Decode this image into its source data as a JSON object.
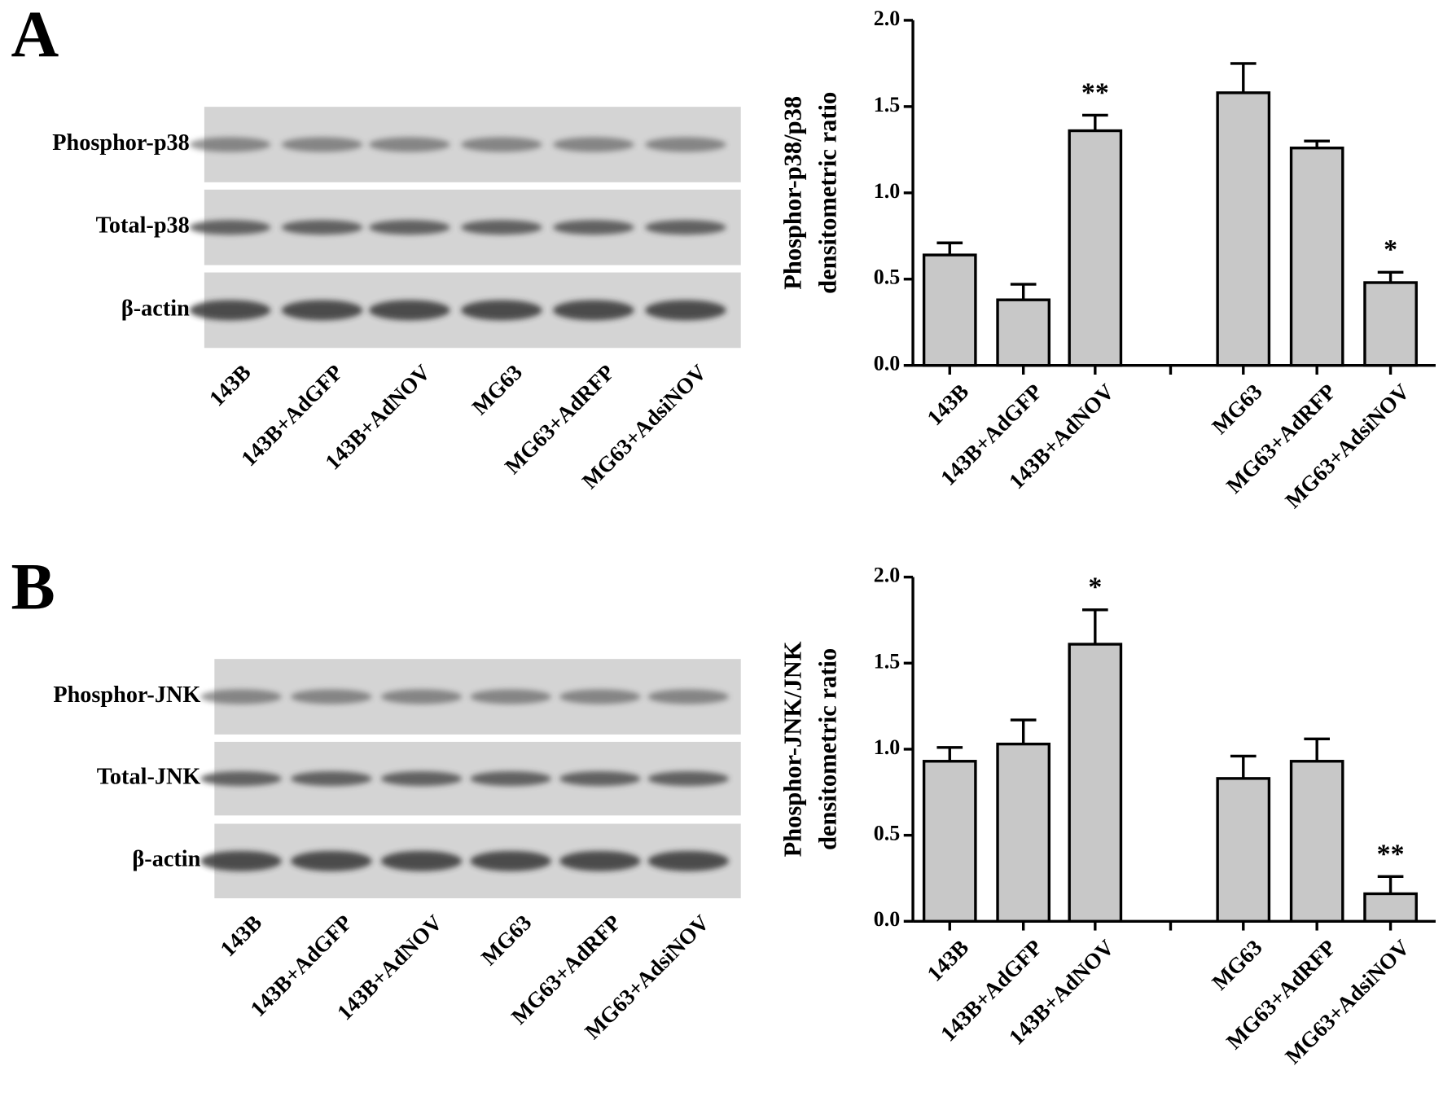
{
  "panels": [
    {
      "letter": "A",
      "blot_rows": [
        "Phosphor-p38",
        "Total-p38",
        "β-actin"
      ],
      "blot_lanes": [
        "143B",
        "143B+AdGFP",
        "143B+AdNOV",
        "MG63",
        "MG63+AdRFP",
        "MG63+AdsiNOV"
      ]
    },
    {
      "letter": "B",
      "blot_rows": [
        "Phosphor-JNK",
        "Total-JNK",
        "β-actin"
      ],
      "blot_lanes": [
        "143B",
        "143B+AdGFP",
        "143B+AdNOV",
        "MG63",
        "MG63+AdRFP",
        "MG63+AdsiNOV"
      ]
    }
  ],
  "chart_data": [
    {
      "type": "bar",
      "ylabel": [
        "Phosphor-p38/p38",
        "densitometric ratio"
      ],
      "categories": [
        "143B",
        "143B+AdGFP",
        "143B+AdNOV",
        "MG63",
        "MG63+AdRFP",
        "MG63+AdsiNOV"
      ],
      "values": [
        0.64,
        0.38,
        1.36,
        1.58,
        1.26,
        0.48
      ],
      "errors": [
        0.07,
        0.09,
        0.09,
        0.17,
        0.04,
        0.06
      ],
      "value_annotations": [
        null,
        null,
        "**",
        null,
        null,
        "*"
      ],
      "color": "#c8c8c8",
      "ylim": [
        0,
        2
      ],
      "yticks": [
        {
          "value": 0,
          "label": "0.0"
        },
        0.5,
        {
          "value": 1,
          "label": "1.0"
        },
        1.5,
        {
          "value": 2,
          "label": "2.0"
        }
      ]
    },
    {
      "type": "bar",
      "ylabel": [
        "Phosphor-JNK/JNK",
        "densitometric ratio"
      ],
      "categories": [
        "143B",
        "143B+AdGFP",
        "143B+AdNOV",
        "MG63",
        "MG63+AdRFP",
        "MG63+AdsiNOV"
      ],
      "values": [
        0.93,
        1.03,
        1.61,
        0.83,
        0.93,
        0.16
      ],
      "errors": [
        0.08,
        0.14,
        0.2,
        0.13,
        0.13,
        0.1
      ],
      "value_annotations": [
        null,
        null,
        "*",
        null,
        null,
        "**"
      ],
      "color": "#c8c8c8",
      "ylim": [
        0,
        2
      ],
      "yticks": [
        {
          "value": 0,
          "label": "0.0"
        },
        0.5,
        {
          "value": 1,
          "label": "1.0"
        },
        1.5,
        {
          "value": 2,
          "label": "2.0"
        }
      ]
    }
  ]
}
